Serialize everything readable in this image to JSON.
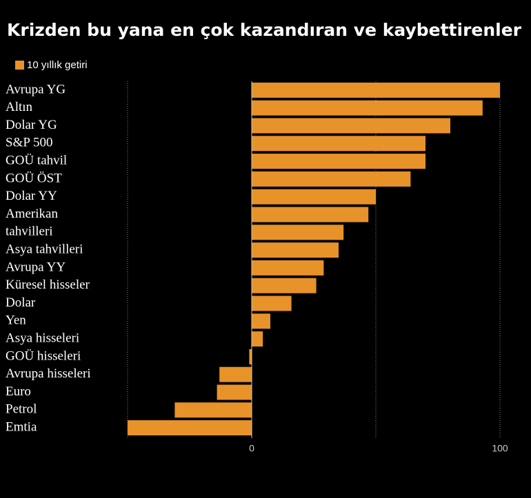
{
  "chart_data": {
    "type": "barh",
    "title": "Krizden bu yana en çok kazandıran ve kaybettirenler",
    "categories": [
      "Avrupa YG",
      "Altın",
      "Dolar YG",
      "S&P 500",
      "GOÜ tahvil",
      "GOÜ ÖST",
      "Dolar YY",
      "Amerikan",
      "tahvilleri",
      "Asya tahvilleri",
      "Avrupa YY",
      "Küresel hisseler",
      "Dolar",
      "Yen",
      "Asya hisseleri",
      "GOÜ hisseleri",
      "Avrupa hisseleri",
      "Euro",
      "Petrol",
      "Emtia"
    ],
    "series": [
      {
        "name": "10 yıllık getiri",
        "color": "#e8922a",
        "values": [
          100,
          93,
          80,
          70,
          70,
          64,
          50,
          47,
          37,
          35,
          29,
          26,
          16,
          7.5,
          4.5,
          -1,
          -13,
          -14,
          -31,
          -50
        ]
      }
    ],
    "xlim": [
      -50,
      100
    ],
    "xticks": [
      0,
      100
    ],
    "grid_lines": [
      -50,
      50,
      100
    ],
    "legend": "top-left"
  }
}
